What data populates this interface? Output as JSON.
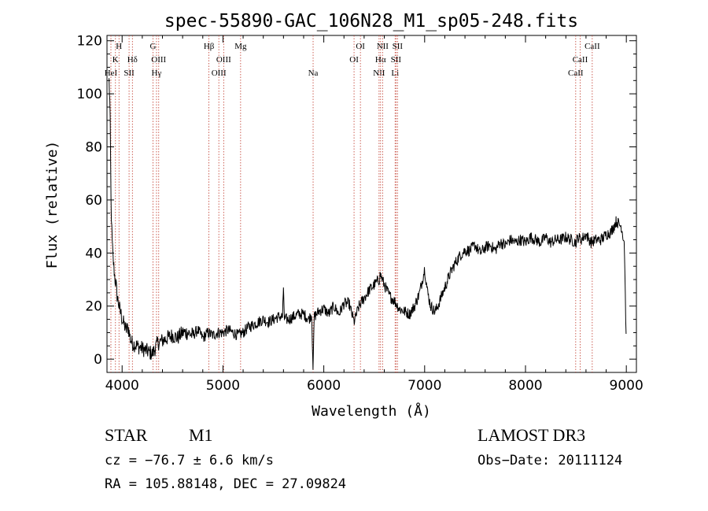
{
  "chart_data": {
    "type": "line",
    "title": "spec-55890-GAC_106N28_M1_sp05-248.fits",
    "xlabel": "Wavelength (Å)",
    "ylabel": "Flux (relative)",
    "xlim": [
      3850,
      9100
    ],
    "ylim": [
      -5,
      122
    ],
    "xticks": [
      4000,
      5000,
      6000,
      7000,
      8000,
      9000
    ],
    "yticks": [
      0,
      20,
      40,
      60,
      80,
      100,
      120
    ],
    "xtick_labels": [
      "4000",
      "5000",
      "6000",
      "7000",
      "8000",
      "9000"
    ],
    "ytick_labels": [
      "0",
      "20",
      "40",
      "60",
      "80",
      "100",
      "120"
    ],
    "series": [
      {
        "name": "flux",
        "x": [
          3870,
          3880,
          3890,
          3900,
          3910,
          3920,
          3930,
          3940,
          3950,
          3960,
          3970,
          3980,
          3990,
          4000,
          4020,
          4040,
          4060,
          4080,
          4100,
          4150,
          4200,
          4250,
          4300,
          4350,
          4400,
          4450,
          4500,
          4550,
          4600,
          4650,
          4700,
          4750,
          4800,
          4850,
          4900,
          4950,
          5000,
          5050,
          5100,
          5150,
          5200,
          5250,
          5300,
          5350,
          5400,
          5450,
          5500,
          5550,
          5590,
          5600,
          5610,
          5650,
          5700,
          5750,
          5800,
          5850,
          5880,
          5893,
          5905,
          5950,
          6000,
          6050,
          6100,
          6150,
          6200,
          6250,
          6300,
          6350,
          6400,
          6450,
          6500,
          6550,
          6560,
          6600,
          6650,
          6700,
          6750,
          6800,
          6850,
          6900,
          6950,
          7000,
          7030,
          7060,
          7100,
          7120,
          7150,
          7200,
          7250,
          7300,
          7350,
          7400,
          7450,
          7500,
          7550,
          7600,
          7650,
          7700,
          7750,
          7800,
          7850,
          7900,
          7950,
          8000,
          8050,
          8100,
          8150,
          8200,
          8250,
          8300,
          8350,
          8400,
          8450,
          8500,
          8520,
          8550,
          8600,
          8650,
          8700,
          8750,
          8800,
          8850,
          8900,
          8950,
          8980,
          9000
        ],
        "y": [
          105,
          95,
          60,
          45,
          38,
          34,
          30,
          28,
          24,
          22,
          20,
          18,
          17,
          15,
          13,
          11,
          12,
          8,
          6,
          5,
          4,
          3,
          2,
          6,
          7,
          8,
          9,
          8,
          10,
          10,
          9,
          11,
          8,
          10,
          9,
          10,
          10,
          11,
          10,
          9,
          10,
          12,
          13,
          14,
          15,
          14,
          15,
          16,
          16,
          27,
          15,
          15,
          16,
          17,
          17,
          15,
          17,
          -4,
          16,
          18,
          19,
          17,
          20,
          17,
          21,
          21,
          14,
          20,
          23,
          26,
          28,
          30,
          32,
          28,
          24,
          22,
          19,
          18,
          17,
          20,
          25,
          34,
          25,
          20,
          18,
          19,
          22,
          27,
          32,
          36,
          39,
          41,
          41,
          43,
          40,
          42,
          43,
          41,
          44,
          43,
          45,
          44,
          45,
          44,
          46,
          45,
          44,
          46,
          44,
          45,
          45,
          46,
          45,
          44,
          46,
          45,
          47,
          44,
          45,
          45,
          47,
          48,
          52,
          50,
          44,
          4
        ]
      }
    ],
    "line_markers": [
      {
        "name": "HeI",
        "x": 3889,
        "label_row": 3
      },
      {
        "name": "K",
        "x": 3934,
        "label_row": 2
      },
      {
        "name": "H",
        "x": 3969,
        "label_row": 1
      },
      {
        "name": "SII",
        "x": 4069,
        "label_row": 3
      },
      {
        "name": "Hδ",
        "x": 4102,
        "label_row": 2
      },
      {
        "name": "G",
        "x": 4306,
        "label_row": 1
      },
      {
        "name": "Hγ",
        "x": 4341,
        "label_row": 3
      },
      {
        "name": "OIII",
        "x": 4363,
        "label_row": 2
      },
      {
        "name": "Hβ",
        "x": 4861,
        "label_row": 1
      },
      {
        "name": "OIII",
        "x": 4959,
        "label_row": 3
      },
      {
        "name": "OIII",
        "x": 5007,
        "label_row": 2
      },
      {
        "name": "Mg",
        "x": 5175,
        "label_row": 1
      },
      {
        "name": "Na",
        "x": 5894,
        "label_row": 3
      },
      {
        "name": "OI",
        "x": 6300,
        "label_row": 2
      },
      {
        "name": "OI",
        "x": 6363,
        "label_row": 1
      },
      {
        "name": "NII",
        "x": 6548,
        "label_row": 3
      },
      {
        "name": "Hα",
        "x": 6563,
        "label_row": 2
      },
      {
        "name": "NII",
        "x": 6583,
        "label_row": 1
      },
      {
        "name": "Li",
        "x": 6707,
        "label_row": 3
      },
      {
        "name": "SII",
        "x": 6716,
        "label_row": 2
      },
      {
        "name": "SII",
        "x": 6731,
        "label_row": 1
      },
      {
        "name": "CaII",
        "x": 8498,
        "label_row": 3
      },
      {
        "name": "CaII",
        "x": 8542,
        "label_row": 2
      },
      {
        "name": "CaII",
        "x": 8662,
        "label_row": 1
      }
    ],
    "colors": {
      "spectrum": "#000000",
      "line_markers": "#c0392b",
      "axes": "#000000"
    }
  },
  "info": {
    "class": "STAR",
    "subclass": "M1",
    "survey": "LAMOST DR3",
    "cz": "cz = −76.7 ± 6.6 km/s",
    "obs_date": "Obs−Date: 20111124",
    "coords": "RA = 105.88148, DEC =  27.09824"
  }
}
